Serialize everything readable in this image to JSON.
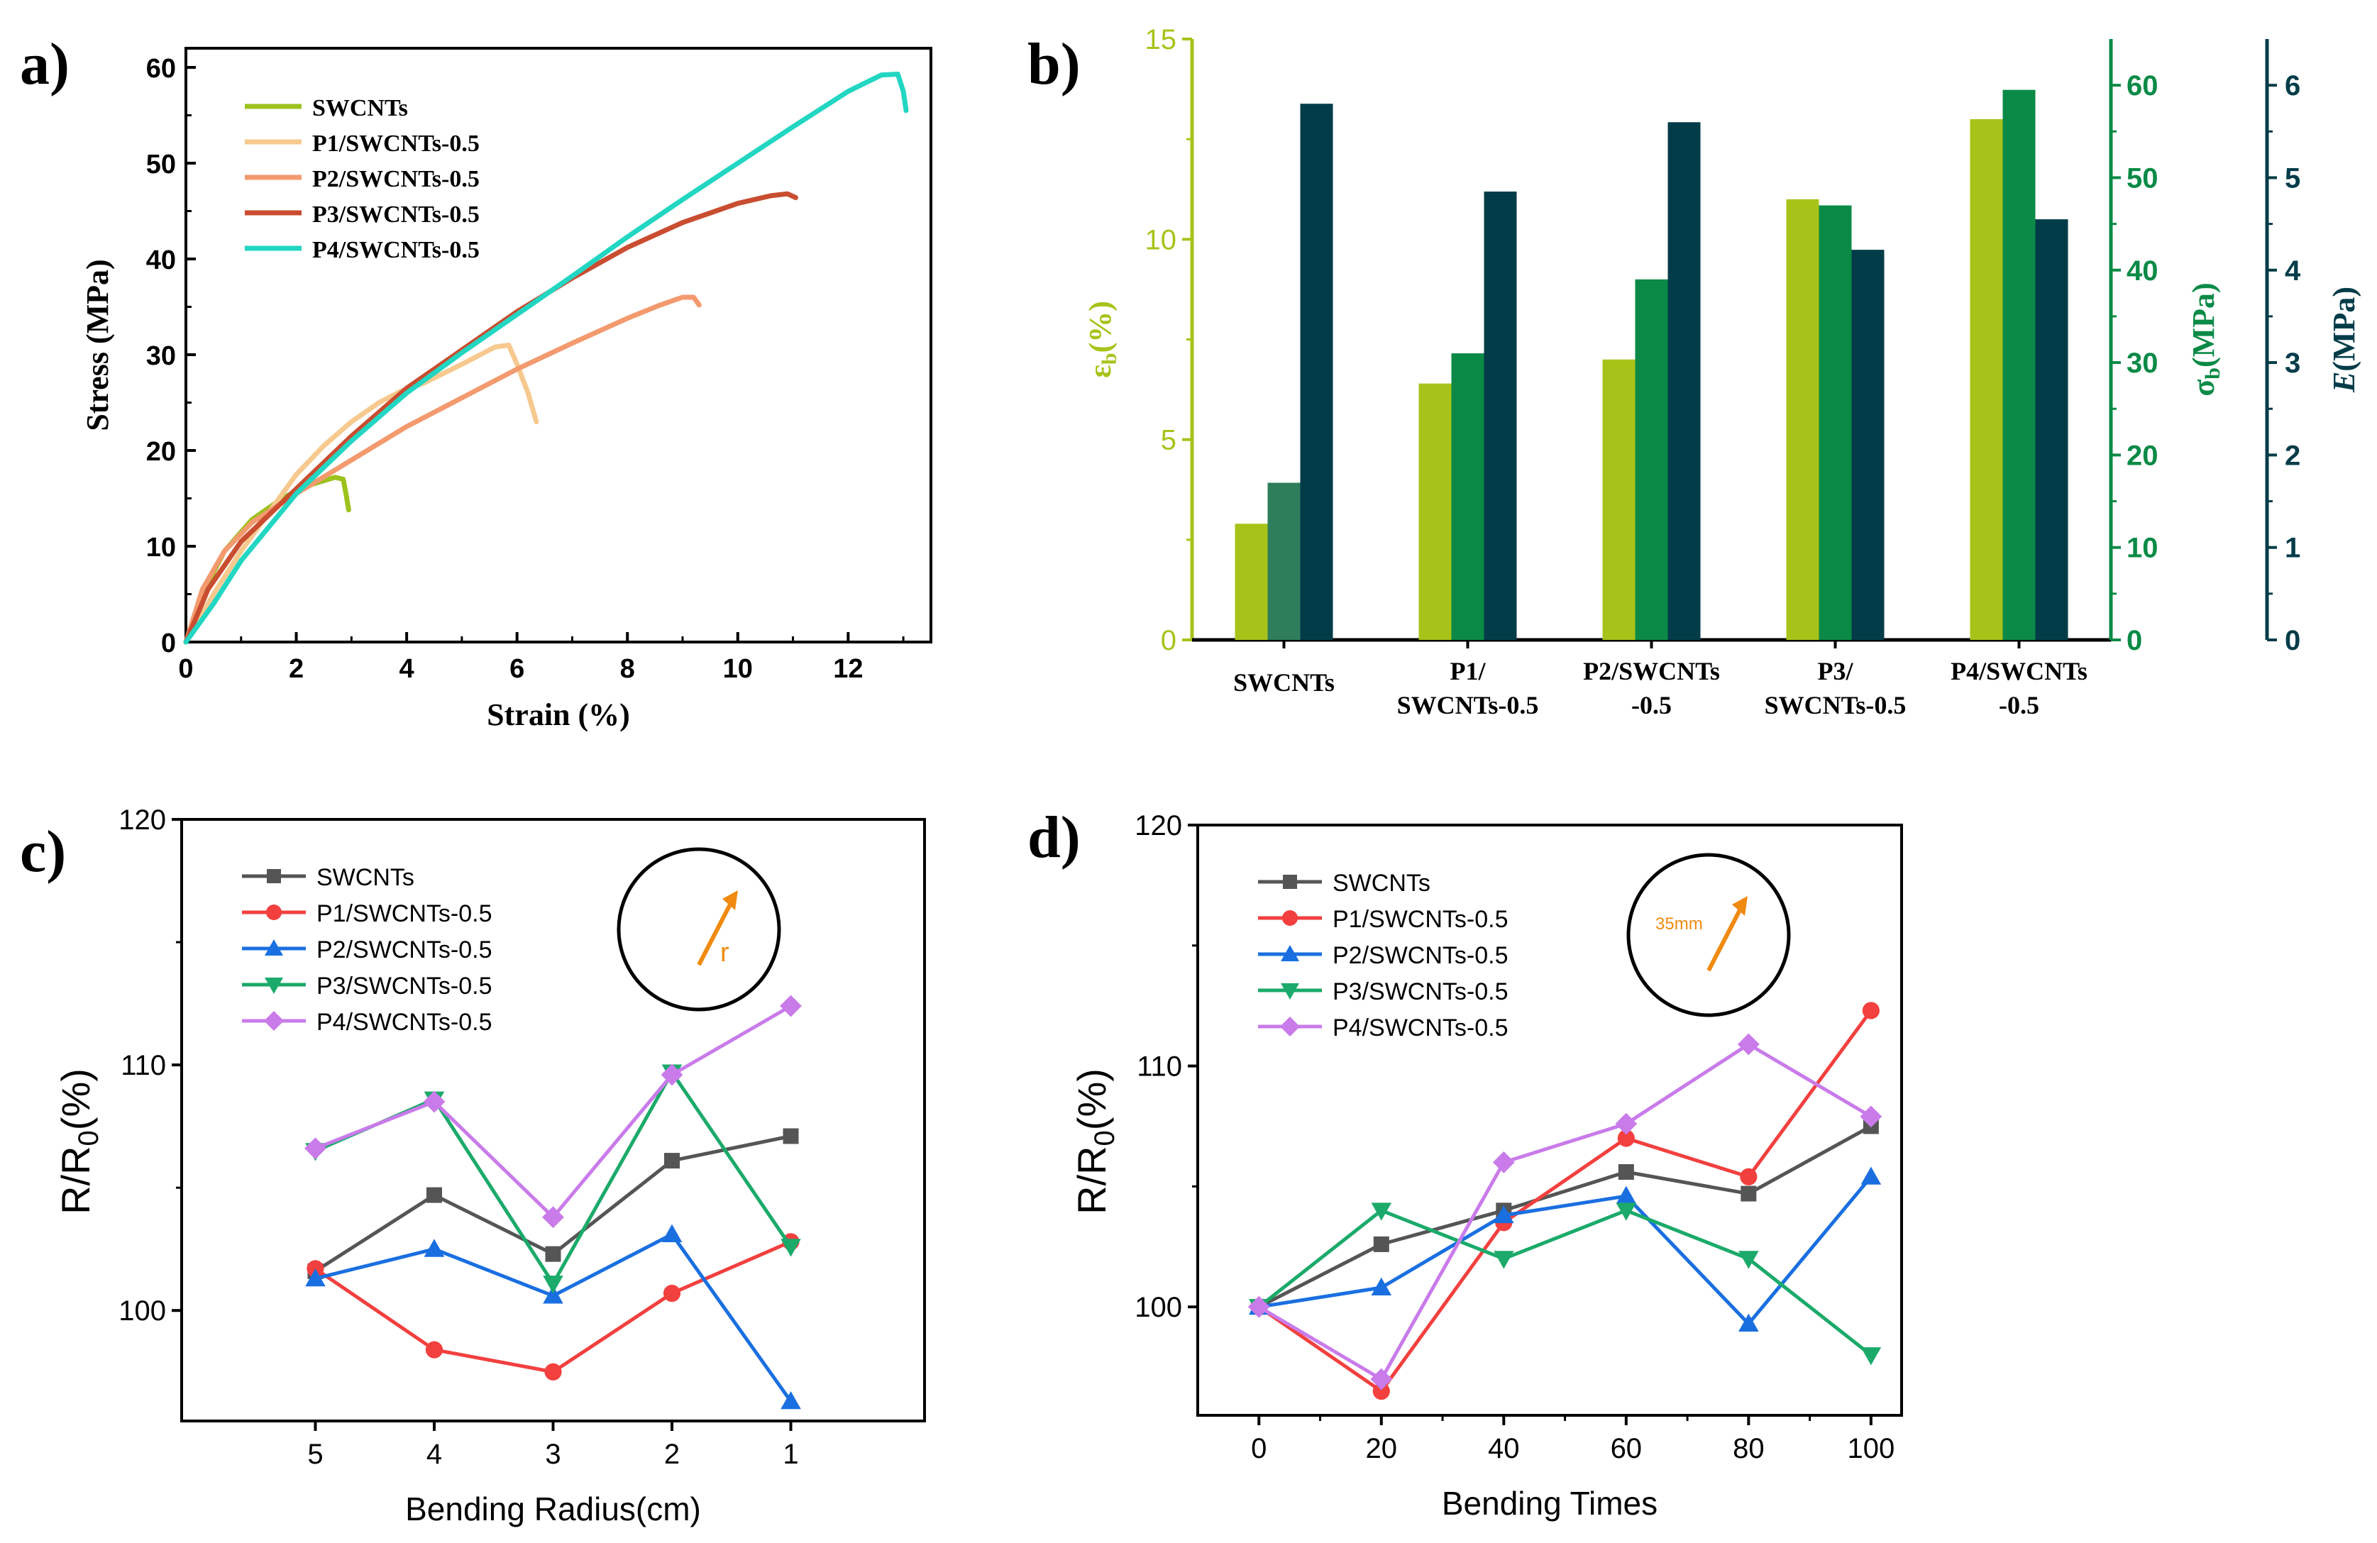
{
  "colors": {
    "SWCNTs_a": "#9CC21E",
    "P1_a": "#F7C98F",
    "P2_a": "#F39A6E",
    "P3_a": "#C94D30",
    "P4_a": "#22D6C2",
    "bar_eps": "#A7C31A",
    "bar_sig": "#0A8A46",
    "bar_sig_first": "#2E7D5B",
    "bar_E": "#033C49",
    "axis_eps": "#A7C31A",
    "axis_sig": "#0A8A46",
    "axis_E": "#033C49",
    "SWCNTs_cd": "#555555",
    "P1_cd": "#F2403F",
    "P2_cd": "#1A6FE0",
    "P3_cd": "#1BAA6A",
    "P4_cd": "#C97BEA",
    "inset_arrow": "#F08A10"
  },
  "chart_data": [
    {
      "panel": "a)",
      "type": "line",
      "xlabel": "Strain (%)",
      "ylabel": "Stress (MPa)",
      "xlim": [
        0,
        13.5
      ],
      "ylim": [
        0,
        62
      ],
      "xticks": [
        0,
        2,
        4,
        6,
        8,
        10,
        12
      ],
      "yticks": [
        0,
        10,
        20,
        30,
        40,
        50,
        60
      ],
      "legend_position": "top-left",
      "series": [
        {
          "name": "SWCNTs",
          "color_key": "SWCNTs_a",
          "x": [
            0,
            0.3,
            0.7,
            1.2,
            1.8,
            2.3,
            2.7,
            2.85,
            2.9,
            2.95
          ],
          "y": [
            0,
            5,
            9.5,
            12.8,
            15.2,
            16.5,
            17.2,
            17,
            15.5,
            13.8
          ]
        },
        {
          "name": "P1/SWCNTs-0.5",
          "color_key": "P1_a",
          "x": [
            0,
            0.5,
            1.0,
            1.5,
            2,
            2.5,
            3,
            3.5,
            3.9,
            4.3,
            5,
            5.6,
            5.85,
            6.0,
            6.2,
            6.35
          ],
          "y": [
            0,
            5,
            9.5,
            13.5,
            17.5,
            20.5,
            23,
            25,
            26.2,
            27,
            29,
            30.8,
            31,
            29,
            26,
            23
          ]
        },
        {
          "name": "P2/SWCNTs-0.5",
          "color_key": "P2_a",
          "x": [
            0,
            0.3,
            0.7,
            1.2,
            2,
            3,
            4,
            5,
            6,
            7,
            8,
            8.6,
            9.0,
            9.2,
            9.3
          ],
          "y": [
            0,
            5.5,
            9.5,
            12.5,
            15.5,
            19,
            22.5,
            25.5,
            28.5,
            31.2,
            33.8,
            35.2,
            36,
            36,
            35.2
          ]
        },
        {
          "name": "P3/SWCNTs-0.5",
          "color_key": "P3_a",
          "x": [
            0,
            0.4,
            1,
            2,
            3,
            4,
            5,
            6,
            7,
            8,
            9,
            10,
            10.6,
            10.9,
            11.05
          ],
          "y": [
            0,
            5.5,
            10.5,
            16,
            21.5,
            26.5,
            30.5,
            34.5,
            38,
            41.2,
            43.8,
            45.8,
            46.6,
            46.8,
            46.4
          ]
        },
        {
          "name": "P4/SWCNTs-0.5",
          "color_key": "P4_a",
          "x": [
            0,
            0.5,
            1,
            2,
            3,
            4,
            5,
            6,
            7,
            8,
            9,
            10,
            11,
            12,
            12.6,
            12.9,
            13.0,
            13.05
          ],
          "y": [
            0,
            4,
            8.5,
            15.5,
            21,
            26,
            30.2,
            34.2,
            38.2,
            42.3,
            46.2,
            50,
            53.8,
            57.5,
            59.2,
            59.3,
            57.5,
            55.5
          ]
        }
      ]
    },
    {
      "panel": "b)",
      "type": "bar",
      "categories": [
        "SWCNTs",
        "P1/\nSWCNTs-0.5",
        "P2/SWCNTs\n-0.5",
        "P3/\nSWCNTs-0.5",
        "P4/SWCNTs\n-0.5"
      ],
      "series": [
        {
          "name": "εb",
          "axis": "left",
          "unit_label": "εb(%)",
          "ylim": [
            0,
            15
          ],
          "yticks": [
            0,
            5,
            10,
            15
          ],
          "values": [
            2.9,
            6.4,
            7.0,
            11.0,
            13.0
          ]
        },
        {
          "name": "σb",
          "axis": "right",
          "unit_label": "σb(MPa)",
          "ylim": [
            0,
            65
          ],
          "yticks": [
            0,
            10,
            20,
            30,
            40,
            50,
            60
          ],
          "values": [
            17,
            31,
            39,
            47,
            59.5
          ]
        },
        {
          "name": "E",
          "axis": "right-outer",
          "unit_label": "E(MPa)",
          "ylim": [
            0,
            6.5
          ],
          "yticks": [
            0,
            1,
            2,
            3,
            4,
            5,
            6
          ],
          "values": [
            5.8,
            4.85,
            5.6,
            4.22,
            4.55
          ]
        }
      ]
    },
    {
      "panel": "c)",
      "type": "line",
      "xlabel": "Bending Radius(cm)",
      "ylabel": "R/R0(%)",
      "categories": [
        "5",
        "4",
        "3",
        "2",
        "1"
      ],
      "ylim": [
        95.5,
        120
      ],
      "yticks": [
        100,
        110,
        120
      ],
      "legend_position": "top-left",
      "inset": {
        "label": "r"
      },
      "series": [
        {
          "name": "SWCNTs",
          "color_key": "SWCNTs_cd",
          "marker": "square",
          "values": [
            101.6,
            104.7,
            102.3,
            106.1,
            107.1
          ]
        },
        {
          "name": "P1/SWCNTs-0.5",
          "color_key": "P1_cd",
          "marker": "circle",
          "values": [
            101.7,
            98.4,
            97.5,
            100.7,
            102.8
          ]
        },
        {
          "name": "P2/SWCNTs-0.5",
          "color_key": "P2_cd",
          "marker": "triangle-up",
          "values": [
            101.3,
            102.5,
            100.6,
            103.1,
            96.3
          ]
        },
        {
          "name": "P3/SWCNTs-0.5",
          "color_key": "P3_cd",
          "marker": "triangle-down",
          "values": [
            106.5,
            108.6,
            101.1,
            109.7,
            102.6
          ]
        },
        {
          "name": "P4/SWCNTs-0.5",
          "color_key": "P4_cd",
          "marker": "diamond",
          "values": [
            106.6,
            108.5,
            103.8,
            109.6,
            112.4
          ]
        }
      ]
    },
    {
      "panel": "d)",
      "type": "line",
      "xlabel": "Bending Times",
      "ylabel": "R/R0(%)",
      "x": [
        0,
        20,
        40,
        60,
        80,
        100
      ],
      "xlim": [
        -10,
        105
      ],
      "ylim": [
        95.5,
        120
      ],
      "xticks": [
        0,
        20,
        40,
        60,
        80,
        100
      ],
      "yticks": [
        100,
        110,
        120
      ],
      "legend_position": "top-left",
      "inset": {
        "label": "35mm"
      },
      "series": [
        {
          "name": "SWCNTs",
          "color_key": "SWCNTs_cd",
          "marker": "square",
          "values": [
            100,
            102.6,
            104,
            105.6,
            104.7,
            107.5
          ]
        },
        {
          "name": "P1/SWCNTs-0.5",
          "color_key": "P1_cd",
          "marker": "circle",
          "values": [
            100,
            96.5,
            103.5,
            107,
            105.4,
            112.3
          ]
        },
        {
          "name": "P2/SWCNTs-0.5",
          "color_key": "P2_cd",
          "marker": "triangle-up",
          "values": [
            100,
            100.8,
            103.8,
            104.6,
            99.3,
            105.4
          ]
        },
        {
          "name": "P3/SWCNTs-0.5",
          "color_key": "P3_cd",
          "marker": "triangle-down",
          "values": [
            100,
            104,
            102,
            104,
            102,
            98
          ]
        },
        {
          "name": "P4/SWCNTs-0.5",
          "color_key": "P4_cd",
          "marker": "diamond",
          "values": [
            100,
            97,
            106,
            107.6,
            110.9,
            107.9
          ]
        }
      ]
    }
  ]
}
